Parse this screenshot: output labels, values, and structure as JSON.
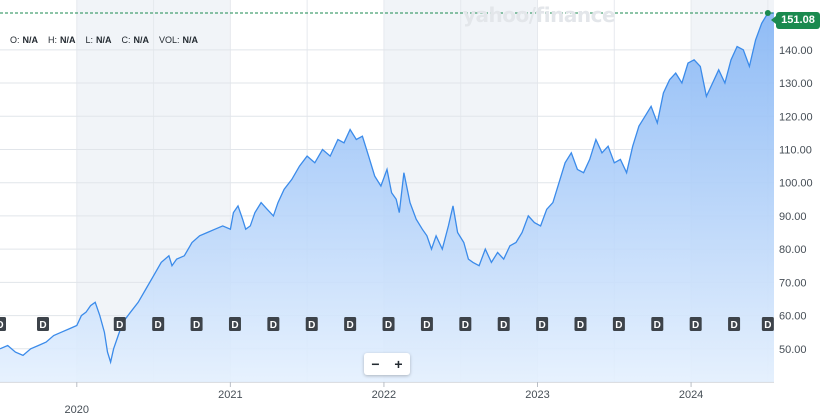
{
  "watermark": "yahoo/finance",
  "ohlc": [
    {
      "key": "O:",
      "value": "N/A"
    },
    {
      "key": "H:",
      "value": "N/A"
    },
    {
      "key": "L:",
      "value": "N/A"
    },
    {
      "key": "C:",
      "value": "N/A"
    },
    {
      "key": "VOL:",
      "value": "N/A"
    }
  ],
  "zoom": {
    "minus": "−",
    "plus": "+"
  },
  "current_price": "151.08",
  "colors": {
    "line": "#3b8bea",
    "fill": "#b9d7fb",
    "price_tag": "#1a8a4f",
    "marker": "#3d434a"
  },
  "chart_data": {
    "type": "area",
    "title": "",
    "xlabel": "",
    "ylabel": "",
    "ylim": [
      40,
      155
    ],
    "y_ticks": [
      "50.00",
      "60.00",
      "70.00",
      "80.00",
      "90.00",
      "100.00",
      "110.00",
      "120.00",
      "130.00",
      "140.00"
    ],
    "x_ticks": [
      "2020",
      "2021",
      "2022",
      "2023",
      "2024"
    ],
    "grid": true,
    "dividend_marker_label": "D",
    "dividend_dates": [
      2019.5,
      2019.78,
      2020.28,
      2020.53,
      2020.78,
      2021.03,
      2021.28,
      2021.53,
      2021.78,
      2022.03,
      2022.28,
      2022.53,
      2022.78,
      2023.03,
      2023.28,
      2023.53,
      2023.78,
      2024.03,
      2024.28,
      2024.5
    ],
    "series": [
      {
        "x": [
          2019.5,
          2019.55,
          2019.6,
          2019.65,
          2019.7,
          2019.75,
          2019.8,
          2019.85,
          2019.9,
          2019.95,
          2020.0,
          2020.03,
          2020.06,
          2020.09,
          2020.12,
          2020.15,
          2020.18,
          2020.2,
          2020.22,
          2020.24,
          2020.27,
          2020.3,
          2020.35,
          2020.4,
          2020.45,
          2020.5,
          2020.55,
          2020.6,
          2020.62,
          2020.65,
          2020.7,
          2020.75,
          2020.8,
          2020.85,
          2020.9,
          2020.95,
          2021.0,
          2021.02,
          2021.05,
          2021.08,
          2021.1,
          2021.13,
          2021.16,
          2021.2,
          2021.24,
          2021.28,
          2021.31,
          2021.35,
          2021.4,
          2021.45,
          2021.5,
          2021.55,
          2021.6,
          2021.65,
          2021.7,
          2021.74,
          2021.78,
          2021.82,
          2021.86,
          2021.9,
          2021.94,
          2021.98,
          2022.02,
          2022.05,
          2022.08,
          2022.1,
          2022.13,
          2022.17,
          2022.21,
          2022.25,
          2022.28,
          2022.31,
          2022.34,
          2022.38,
          2022.42,
          2022.45,
          2022.48,
          2022.52,
          2022.55,
          2022.58,
          2022.62,
          2022.66,
          2022.7,
          2022.74,
          2022.78,
          2022.82,
          2022.86,
          2022.9,
          2022.94,
          2022.98,
          2023.02,
          2023.06,
          2023.1,
          2023.14,
          2023.18,
          2023.22,
          2023.26,
          2023.3,
          2023.34,
          2023.38,
          2023.42,
          2023.46,
          2023.5,
          2023.54,
          2023.58,
          2023.62,
          2023.66,
          2023.7,
          2023.74,
          2023.78,
          2023.82,
          2023.86,
          2023.9,
          2023.94,
          2023.98,
          2024.02,
          2024.06,
          2024.1,
          2024.14,
          2024.18,
          2024.22,
          2024.26,
          2024.3,
          2024.34,
          2024.38,
          2024.42,
          2024.46,
          2024.5,
          2024.54
        ],
        "y": [
          50,
          51,
          49,
          48,
          50,
          51,
          52,
          54,
          55,
          56,
          57,
          60,
          61,
          63,
          64,
          60,
          55,
          49,
          46,
          50,
          54,
          58,
          61,
          64,
          68,
          72,
          76,
          78,
          75,
          77,
          78,
          82,
          84,
          85,
          86,
          87,
          86,
          91,
          93,
          89,
          86,
          87,
          91,
          94,
          92,
          90,
          94,
          98,
          101,
          105,
          108,
          106,
          110,
          108,
          113,
          112,
          116,
          113,
          114,
          108,
          102,
          99,
          104,
          97,
          95,
          91,
          103,
          94,
          89,
          86,
          84,
          80,
          84,
          80,
          87,
          93,
          85,
          82,
          77,
          76,
          75,
          80,
          76,
          79,
          77,
          81,
          82,
          85,
          90,
          88,
          87,
          92,
          94,
          100,
          106,
          109,
          104,
          103,
          107,
          113,
          109,
          111,
          106,
          107,
          103,
          111,
          117,
          120,
          123,
          118,
          127,
          131,
          133,
          130,
          136,
          137,
          135,
          126,
          130,
          134,
          130,
          137,
          141,
          140,
          135,
          143,
          148,
          151.08,
          151.08
        ]
      }
    ]
  }
}
